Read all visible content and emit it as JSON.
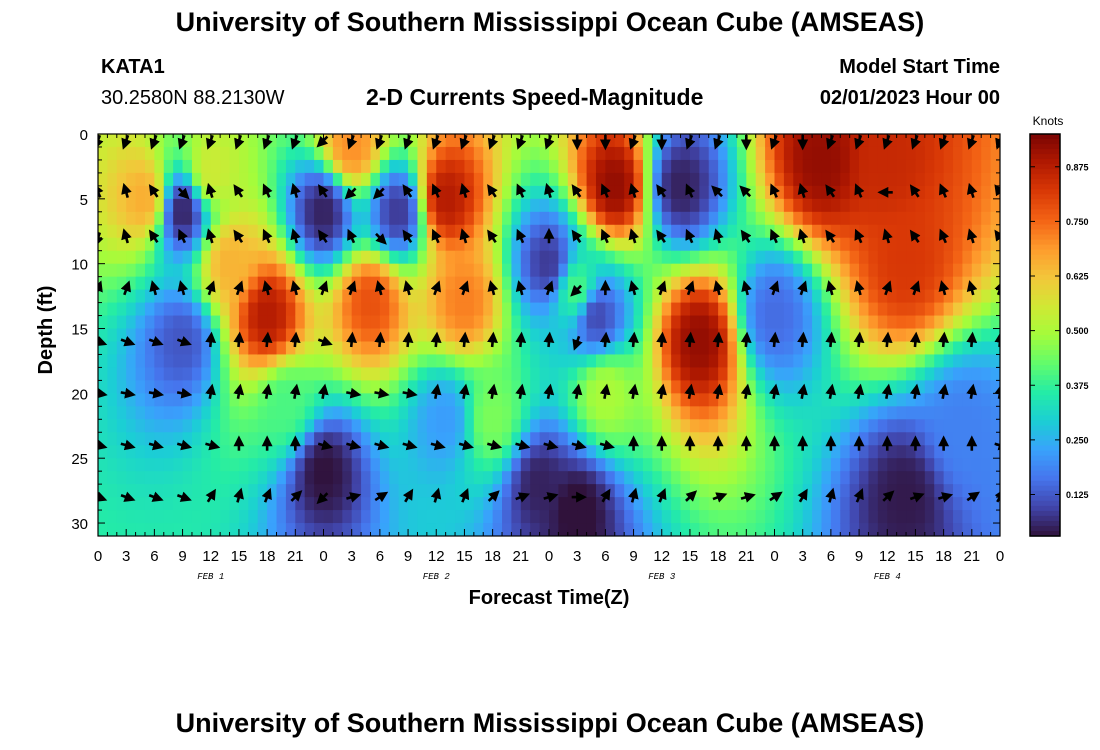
{
  "header": {
    "title": "University of Southern Mississippi Ocean Cube (AMSEAS)",
    "station_id": "KATA1",
    "coordinates": "30.2580N  88.2130W",
    "product": "2-D Currents Speed-Magnitude",
    "model_start_label": "Model Start Time",
    "model_start_value": "02/01/2023 Hour 00"
  },
  "footer": {
    "title": "University of Southern Mississippi Ocean Cube (AMSEAS)"
  },
  "colors": {
    "ramp": [
      "#30123b",
      "#4145ab",
      "#4675ed",
      "#39a2fc",
      "#1bcfd4",
      "#24eca6",
      "#61fc6c",
      "#a4fc3b",
      "#d1e834",
      "#f3c63a",
      "#fe9b2d",
      "#f36315",
      "#d93806",
      "#b11901",
      "#7a0403"
    ],
    "arrow": "#000000"
  },
  "chart_data": {
    "type": "heatmap",
    "title": "2-D Currents Speed-Magnitude",
    "xlabel": "Forecast Time(Z)",
    "ylabel": "Depth (ft)",
    "x_hours_range": [
      0,
      96
    ],
    "x_tick_labels": [
      "0",
      "3",
      "6",
      "9",
      "12",
      "15",
      "18",
      "21",
      "0",
      "3",
      "6",
      "9",
      "12",
      "15",
      "18",
      "21",
      "0",
      "3",
      "6",
      "9",
      "12",
      "15",
      "18",
      "21",
      "0",
      "3",
      "6",
      "9",
      "12",
      "15",
      "18",
      "21",
      "0"
    ],
    "day_labels": [
      {
        "label": "FEB 1",
        "hour": 12
      },
      {
        "label": "FEB 2",
        "hour": 36
      },
      {
        "label": "FEB 3",
        "hour": 60
      },
      {
        "label": "FEB 4",
        "hour": 84
      }
    ],
    "ylim": [
      0,
      31
    ],
    "y_ticks": [
      0,
      5,
      10,
      15,
      20,
      25,
      30
    ],
    "colorbar": {
      "unit": "Knots",
      "range": [
        0.03,
        0.95
      ],
      "ticks": [
        0.125,
        0.25,
        0.375,
        0.5,
        0.625,
        0.75,
        0.875
      ],
      "tick_labels": [
        "0.125",
        "0.250",
        "0.375",
        "0.500",
        "0.625",
        "0.750",
        "0.875"
      ]
    },
    "speed_features": [
      {
        "hour": 5,
        "depth": 5,
        "speed": 0.66
      },
      {
        "hour": 9,
        "depth": 6,
        "speed": 0.05
      },
      {
        "hour": 12,
        "depth": 3,
        "speed": 0.55
      },
      {
        "hour": 14,
        "depth": 10,
        "speed": 0.65
      },
      {
        "hour": 18,
        "depth": 14,
        "speed": 0.88
      },
      {
        "hour": 9,
        "depth": 16,
        "speed": 0.12
      },
      {
        "hour": 20,
        "depth": 21,
        "speed": 0.4
      },
      {
        "hour": 24,
        "depth": 6,
        "speed": 0.05
      },
      {
        "hour": 24,
        "depth": 26,
        "speed": 0.03
      },
      {
        "hour": 27,
        "depth": 1,
        "speed": 0.7
      },
      {
        "hour": 29,
        "depth": 13,
        "speed": 0.78
      },
      {
        "hour": 32,
        "depth": 6,
        "speed": 0.08
      },
      {
        "hour": 37,
        "depth": 5,
        "speed": 0.88
      },
      {
        "hour": 39,
        "depth": 13,
        "speed": 0.72
      },
      {
        "hour": 37,
        "depth": 22,
        "speed": 0.22
      },
      {
        "hour": 42,
        "depth": 22,
        "speed": 0.45
      },
      {
        "hour": 48,
        "depth": 10,
        "speed": 0.08
      },
      {
        "hour": 47,
        "depth": 27,
        "speed": 0.05
      },
      {
        "hour": 51,
        "depth": 29,
        "speed": 0.02
      },
      {
        "hour": 51,
        "depth": 12,
        "speed": 0.4
      },
      {
        "hour": 55,
        "depth": 4,
        "speed": 0.92
      },
      {
        "hour": 53,
        "depth": 14,
        "speed": 0.1
      },
      {
        "hour": 54,
        "depth": 20,
        "speed": 0.5
      },
      {
        "hour": 62,
        "depth": 4,
        "speed": 0.05
      },
      {
        "hour": 64,
        "depth": 16,
        "speed": 0.92
      },
      {
        "hour": 72,
        "depth": 14,
        "speed": 0.15
      },
      {
        "hour": 77,
        "depth": 2,
        "speed": 0.92
      },
      {
        "hour": 84,
        "depth": 2,
        "speed": 0.85
      },
      {
        "hour": 86,
        "depth": 10,
        "speed": 0.82
      },
      {
        "hour": 86,
        "depth": 28,
        "speed": 0.04
      },
      {
        "hour": 92,
        "depth": 23,
        "speed": 0.18
      }
    ],
    "vectors": [
      {
        "depth": 0.5,
        "hour": 1,
        "dir": 225
      },
      {
        "depth": 0.5,
        "hour": 5,
        "dir": 200
      },
      {
        "depth": 0.5,
        "hour": 24,
        "dir": 225
      },
      {
        "depth": 0.5,
        "hour": 51,
        "dir": 180
      },
      {
        "depth": 0.5,
        "hour": 54,
        "dir": 180
      },
      {
        "depth": 0.5,
        "hour": 57,
        "dir": 200
      },
      {
        "depth": 0.5,
        "hour": 60,
        "dir": 180
      },
      {
        "depth": 0.5,
        "hour": 69,
        "dir": 180
      },
      {
        "depth": 0.5,
        "hour": 75,
        "dir": 180
      },
      {
        "depth": 4.5,
        "hour": 9,
        "dir": 135
      },
      {
        "depth": 4.5,
        "hour": 27,
        "dir": 225
      },
      {
        "depth": 4.5,
        "hour": 30,
        "dir": 225
      },
      {
        "depth": 4.5,
        "hour": 66,
        "dir": 315
      },
      {
        "depth": 4.5,
        "hour": 69,
        "dir": 315
      },
      {
        "depth": 4.5,
        "hour": 84,
        "dir": 270
      },
      {
        "depth": 8,
        "hour": 0,
        "dir": 200
      },
      {
        "depth": 8,
        "hour": 30,
        "dir": 135
      },
      {
        "depth": 8,
        "hour": 48,
        "dir": 0
      },
      {
        "depth": 12,
        "hour": 54,
        "dir": 0
      },
      {
        "depth": 12,
        "hour": 51,
        "dir": 225
      },
      {
        "depth": 16,
        "hour": 51,
        "dir": 200
      },
      {
        "depth": 16,
        "hour": 24,
        "dir": 110
      },
      {
        "depth": 28,
        "hour": 24,
        "dir": 225
      },
      {
        "depth": 28,
        "hour": 51,
        "dir": 90
      }
    ]
  }
}
